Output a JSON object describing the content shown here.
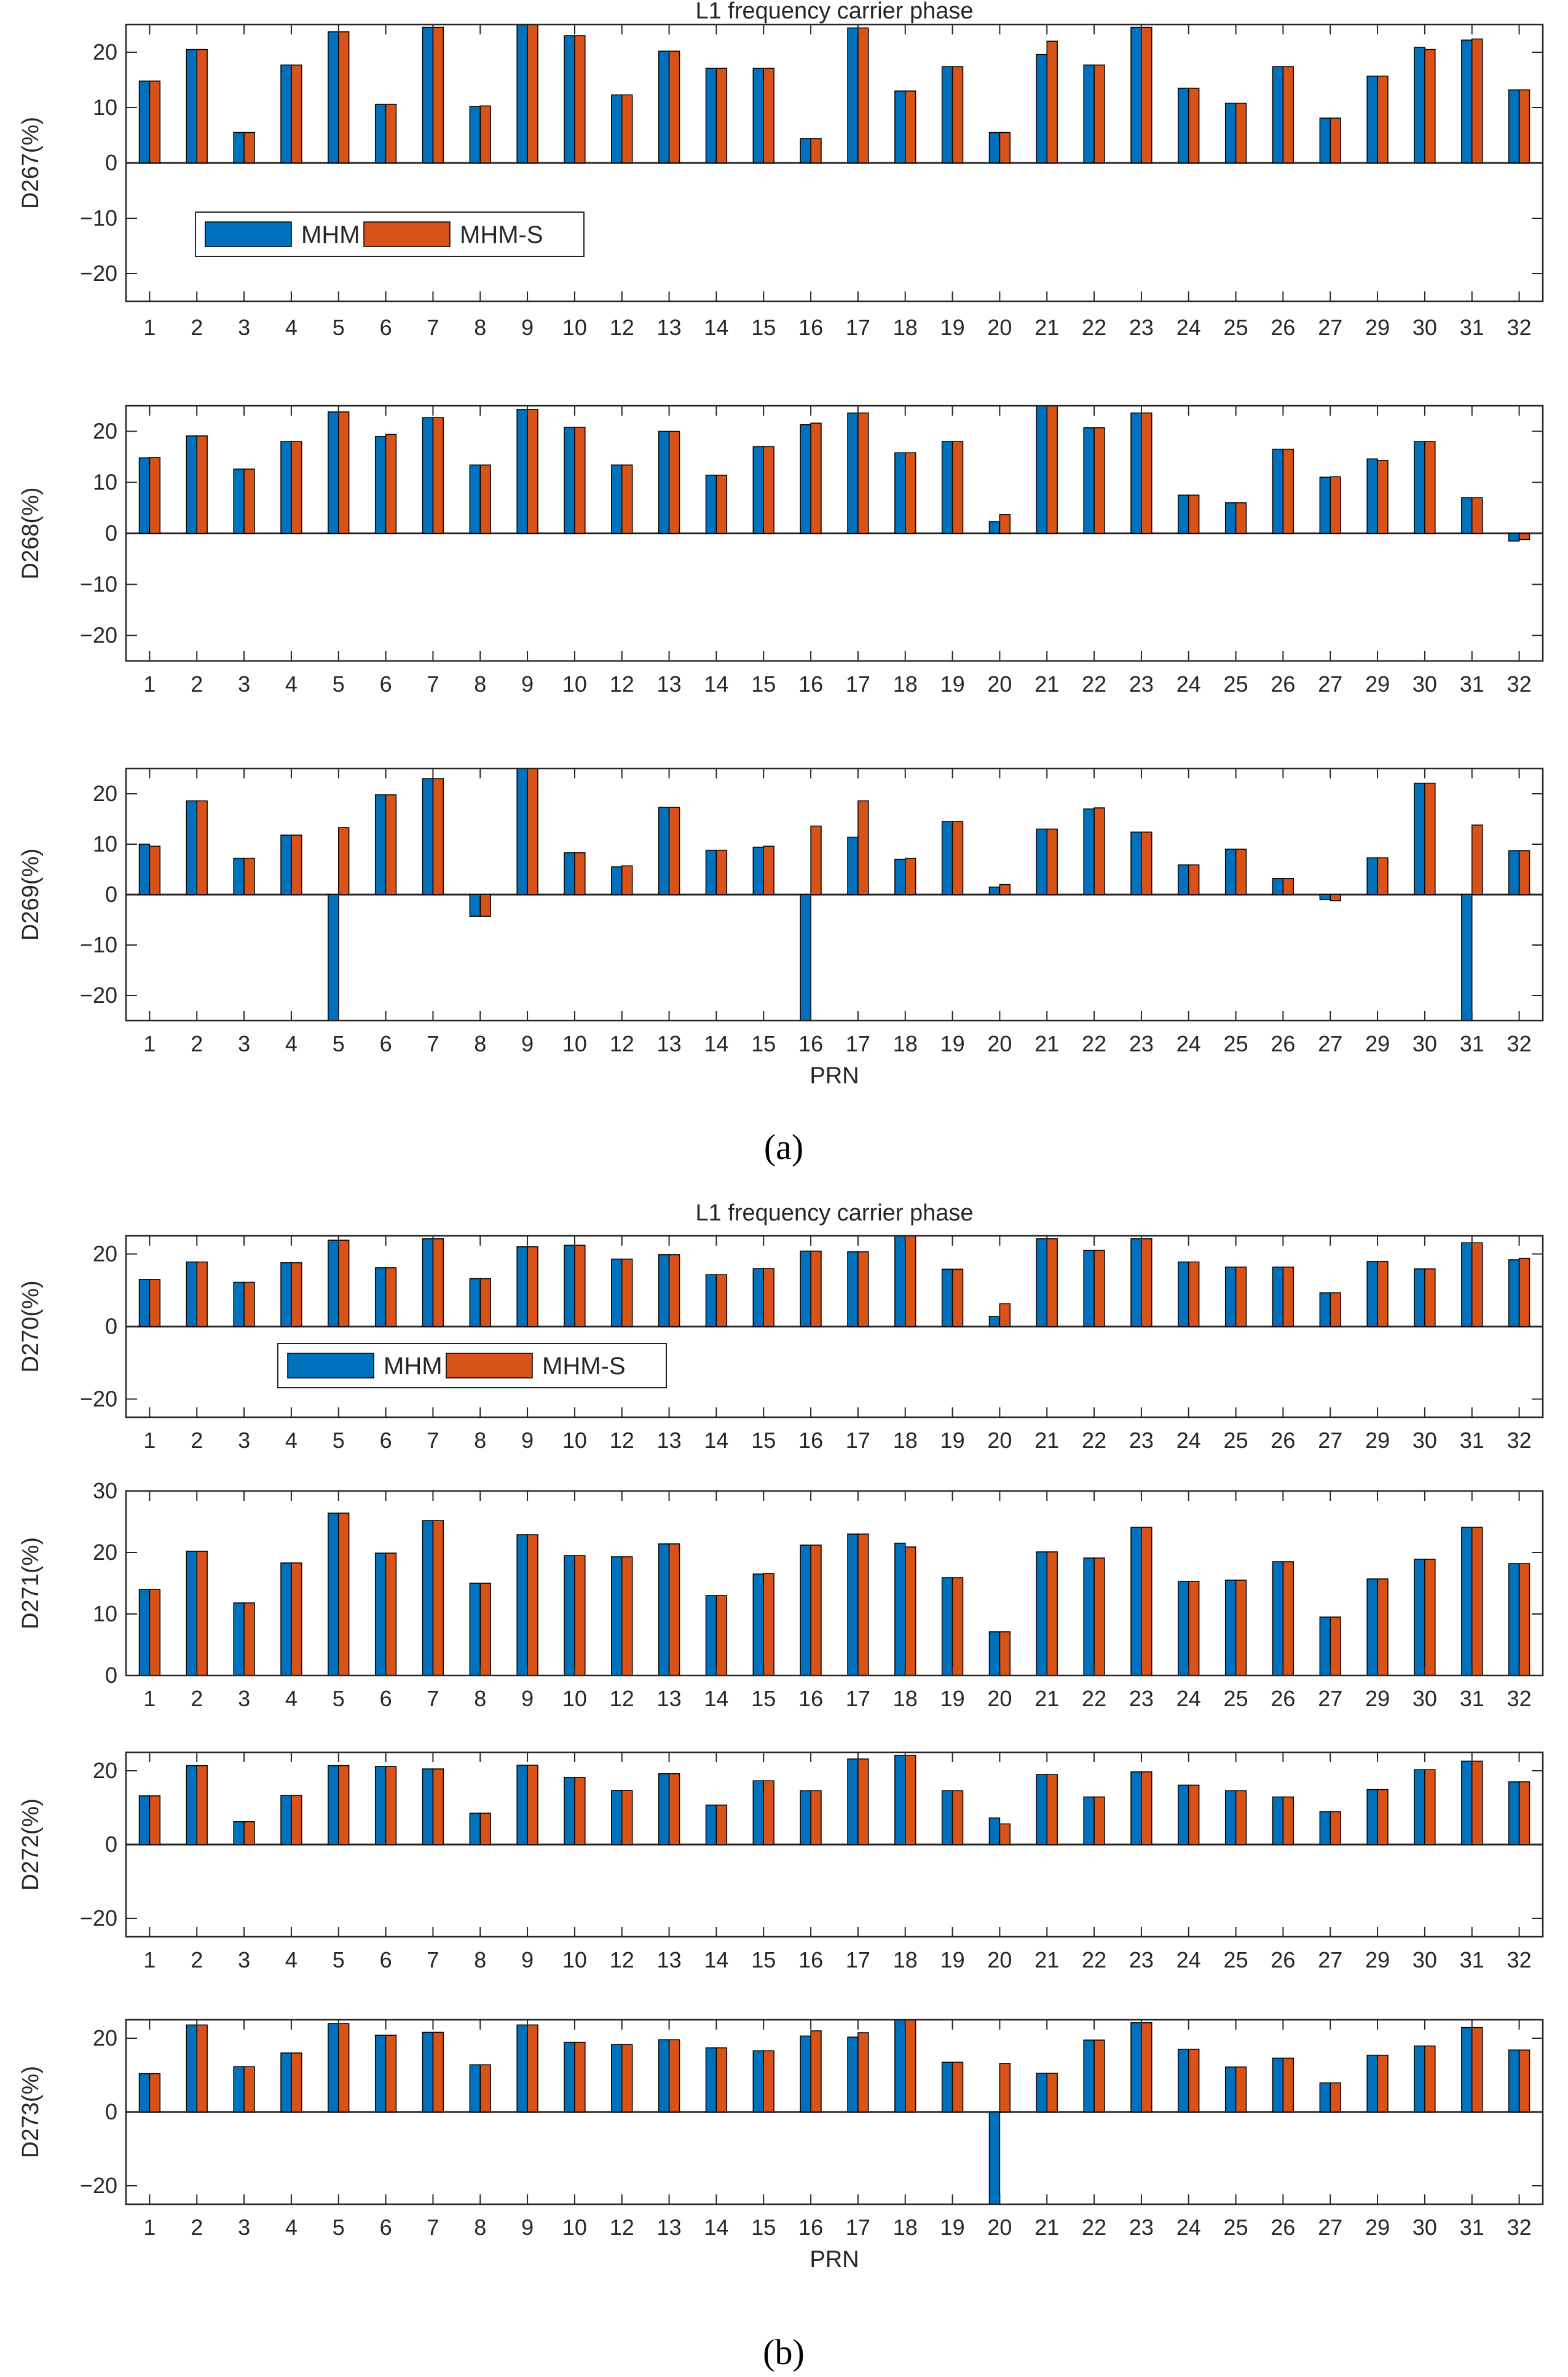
{
  "figure": {
    "panel_a_label": "(a)",
    "panel_b_label": "(b)",
    "colors": {
      "MHM": "#0072BD",
      "MHM-S": "#D95319",
      "axis": "#262626",
      "bar_edge": "#000000"
    }
  },
  "chart_data": [
    {
      "type": "bar",
      "group": "a",
      "title": "L1 frequency carrier phase",
      "ylabel": "D267(%)",
      "xlabel": "",
      "ylim": [
        -25,
        25
      ],
      "yticks": [
        -20,
        -10,
        0,
        10,
        20
      ],
      "legend": {
        "entries": [
          "MHM",
          "MHM-S"
        ],
        "placement": "lower-left"
      },
      "categories": [
        "1",
        "2",
        "3",
        "4",
        "5",
        "6",
        "7",
        "8",
        "9",
        "10",
        "12",
        "13",
        "14",
        "15",
        "16",
        "17",
        "18",
        "19",
        "20",
        "21",
        "22",
        "23",
        "24",
        "25",
        "26",
        "27",
        "29",
        "30",
        "31",
        "32"
      ],
      "series": [
        {
          "name": "MHM",
          "values": [
            14.8,
            20.5,
            5.5,
            17.7,
            23.7,
            10.6,
            24.5,
            10.2,
            25.0,
            23.0,
            12.3,
            20.2,
            17.1,
            17.1,
            4.4,
            24.4,
            13.0,
            17.4,
            5.5,
            19.6,
            17.7,
            24.5,
            13.5,
            10.8,
            17.4,
            8.1,
            15.7,
            20.9,
            22.2,
            13.2
          ]
        },
        {
          "name": "MHM-S",
          "values": [
            14.8,
            20.5,
            5.5,
            17.7,
            23.7,
            10.6,
            24.5,
            10.3,
            25.0,
            23.0,
            12.3,
            20.2,
            17.1,
            17.1,
            4.4,
            24.4,
            13.0,
            17.4,
            5.5,
            22.0,
            17.7,
            24.5,
            13.5,
            10.8,
            17.4,
            8.1,
            15.7,
            20.5,
            22.4,
            13.2
          ]
        }
      ]
    },
    {
      "type": "bar",
      "group": "a",
      "ylabel": "D268(%)",
      "xlabel": "",
      "ylim": [
        -25,
        25
      ],
      "yticks": [
        -20,
        -10,
        0,
        10,
        20
      ],
      "categories": [
        "1",
        "2",
        "3",
        "4",
        "5",
        "6",
        "7",
        "8",
        "9",
        "10",
        "12",
        "13",
        "14",
        "15",
        "16",
        "17",
        "18",
        "19",
        "20",
        "21",
        "22",
        "23",
        "24",
        "25",
        "26",
        "27",
        "29",
        "30",
        "31",
        "32"
      ],
      "series": [
        {
          "name": "MHM",
          "values": [
            14.8,
            19.1,
            12.6,
            18.0,
            23.8,
            19.0,
            22.7,
            13.4,
            24.3,
            20.8,
            13.4,
            20.0,
            11.4,
            17.0,
            21.3,
            23.6,
            15.8,
            18.0,
            2.3,
            25.0,
            20.7,
            23.6,
            7.5,
            6.0,
            16.5,
            11.0,
            14.6,
            18.0,
            7.0,
            -1.5
          ]
        },
        {
          "name": "MHM-S",
          "values": [
            14.9,
            19.1,
            12.6,
            18.0,
            23.8,
            19.4,
            22.7,
            13.4,
            24.3,
            20.8,
            13.4,
            20.0,
            11.4,
            17.0,
            21.6,
            23.6,
            15.8,
            18.0,
            3.7,
            25.0,
            20.7,
            23.6,
            7.5,
            6.0,
            16.5,
            11.1,
            14.3,
            18.0,
            7.0,
            -1.2
          ]
        }
      ]
    },
    {
      "type": "bar",
      "group": "a",
      "ylabel": "D269(%)",
      "xlabel": "PRN",
      "ylim": [
        -25,
        25
      ],
      "yticks": [
        -20,
        -10,
        0,
        10,
        20
      ],
      "categories": [
        "1",
        "2",
        "3",
        "4",
        "5",
        "6",
        "7",
        "8",
        "9",
        "10",
        "12",
        "13",
        "14",
        "15",
        "16",
        "17",
        "18",
        "19",
        "20",
        "21",
        "22",
        "23",
        "24",
        "25",
        "26",
        "27",
        "29",
        "30",
        "31",
        "32"
      ],
      "series": [
        {
          "name": "MHM",
          "values": [
            10.0,
            18.6,
            7.2,
            11.8,
            -25,
            19.8,
            23.0,
            -4.3,
            25.0,
            8.3,
            5.5,
            17.3,
            8.8,
            9.4,
            -25,
            11.4,
            7.0,
            14.5,
            1.5,
            13.0,
            17.0,
            12.4,
            5.9,
            9.0,
            3.2,
            -1.0,
            7.3,
            22.1,
            -25,
            8.7
          ]
        },
        {
          "name": "MHM-S",
          "values": [
            9.6,
            18.6,
            7.2,
            11.8,
            13.3,
            19.8,
            23.0,
            -4.3,
            25.0,
            8.3,
            5.7,
            17.3,
            8.8,
            9.6,
            13.6,
            18.6,
            7.2,
            14.5,
            2.0,
            13.0,
            17.2,
            12.4,
            5.9,
            9.0,
            3.2,
            -1.2,
            7.3,
            22.1,
            13.8,
            8.7
          ]
        }
      ]
    },
    {
      "type": "bar",
      "group": "b",
      "title": "L1 frequency carrier phase",
      "ylabel": "D270(%)",
      "xlabel": "",
      "ylim": [
        -25,
        25
      ],
      "yticks": [
        -20,
        0,
        20
      ],
      "legend": {
        "entries": [
          "MHM",
          "MHM-S"
        ],
        "placement": "lower-left"
      },
      "categories": [
        "1",
        "2",
        "3",
        "4",
        "5",
        "6",
        "7",
        "8",
        "9",
        "10",
        "12",
        "13",
        "14",
        "15",
        "16",
        "17",
        "18",
        "19",
        "20",
        "21",
        "22",
        "23",
        "24",
        "25",
        "26",
        "27",
        "29",
        "30",
        "31",
        "32"
      ],
      "series": [
        {
          "name": "MHM",
          "values": [
            13.0,
            17.8,
            12.2,
            17.6,
            23.8,
            16.2,
            24.2,
            13.2,
            22.0,
            22.4,
            18.6,
            19.8,
            14.3,
            16.0,
            20.8,
            20.6,
            25.0,
            15.8,
            2.8,
            24.2,
            21.0,
            24.2,
            17.8,
            16.4,
            16.4,
            9.3,
            17.9,
            15.9,
            23.1,
            18.4
          ]
        },
        {
          "name": "MHM-S",
          "values": [
            13.0,
            17.8,
            12.2,
            17.6,
            23.8,
            16.2,
            24.2,
            13.2,
            22.0,
            22.4,
            18.6,
            19.8,
            14.3,
            16.0,
            20.8,
            20.6,
            25.0,
            15.8,
            6.3,
            24.2,
            21.0,
            24.2,
            17.8,
            16.4,
            16.4,
            9.3,
            17.9,
            15.9,
            23.1,
            18.8
          ]
        }
      ]
    },
    {
      "type": "bar",
      "group": "b",
      "ylabel": "D271(%)",
      "xlabel": "",
      "ylim": [
        0,
        30
      ],
      "yticks": [
        0,
        10,
        20,
        30
      ],
      "categories": [
        "1",
        "2",
        "3",
        "4",
        "5",
        "6",
        "7",
        "8",
        "9",
        "10",
        "12",
        "13",
        "14",
        "15",
        "16",
        "17",
        "18",
        "19",
        "20",
        "21",
        "22",
        "23",
        "24",
        "25",
        "26",
        "27",
        "29",
        "30",
        "31",
        "32"
      ],
      "series": [
        {
          "name": "MHM",
          "values": [
            14.0,
            20.2,
            11.8,
            18.3,
            26.4,
            19.9,
            25.2,
            15.0,
            22.9,
            19.5,
            19.3,
            21.4,
            13.0,
            16.5,
            21.2,
            23.0,
            21.5,
            15.9,
            7.1,
            20.1,
            19.1,
            24.1,
            15.3,
            15.5,
            18.5,
            9.5,
            15.7,
            18.9,
            24.1,
            18.2
          ]
        },
        {
          "name": "MHM-S",
          "values": [
            14.0,
            20.2,
            11.8,
            18.3,
            26.4,
            19.9,
            25.2,
            15.0,
            22.9,
            19.5,
            19.3,
            21.4,
            13.0,
            16.6,
            21.2,
            23.0,
            20.9,
            15.9,
            7.1,
            20.1,
            19.1,
            24.1,
            15.3,
            15.5,
            18.5,
            9.5,
            15.7,
            18.9,
            24.1,
            18.2
          ]
        }
      ]
    },
    {
      "type": "bar",
      "group": "b",
      "ylabel": "D272(%)",
      "xlabel": "",
      "ylim": [
        -25,
        25
      ],
      "yticks": [
        -20,
        0,
        20
      ],
      "categories": [
        "1",
        "2",
        "3",
        "4",
        "5",
        "6",
        "7",
        "8",
        "9",
        "10",
        "12",
        "13",
        "14",
        "15",
        "16",
        "17",
        "18",
        "19",
        "20",
        "21",
        "22",
        "23",
        "24",
        "25",
        "26",
        "27",
        "29",
        "30",
        "31",
        "32"
      ],
      "series": [
        {
          "name": "MHM",
          "values": [
            13.2,
            21.4,
            6.2,
            13.3,
            21.4,
            21.2,
            20.5,
            8.5,
            21.5,
            18.2,
            14.7,
            19.2,
            10.7,
            17.3,
            14.6,
            23.2,
            24.2,
            14.6,
            7.2,
            19.0,
            12.9,
            19.7,
            16.1,
            14.6,
            12.9,
            8.9,
            14.9,
            20.3,
            22.6,
            17.0
          ]
        },
        {
          "name": "MHM-S",
          "values": [
            13.2,
            21.4,
            6.2,
            13.3,
            21.4,
            21.2,
            20.5,
            8.5,
            21.5,
            18.2,
            14.7,
            19.2,
            10.7,
            17.3,
            14.6,
            23.2,
            24.2,
            14.6,
            5.6,
            19.0,
            12.9,
            19.7,
            16.1,
            14.6,
            12.9,
            8.9,
            14.9,
            20.3,
            22.6,
            17.0
          ]
        }
      ]
    },
    {
      "type": "bar",
      "group": "b",
      "ylabel": "D273(%)",
      "xlabel": "PRN",
      "ylim": [
        -25,
        25
      ],
      "yticks": [
        -20,
        0,
        20
      ],
      "categories": [
        "1",
        "2",
        "3",
        "4",
        "5",
        "6",
        "7",
        "8",
        "9",
        "10",
        "12",
        "13",
        "14",
        "15",
        "16",
        "17",
        "18",
        "19",
        "20",
        "21",
        "22",
        "23",
        "24",
        "25",
        "26",
        "27",
        "29",
        "30",
        "31",
        "32"
      ],
      "series": [
        {
          "name": "MHM",
          "values": [
            10.4,
            23.6,
            12.3,
            16.0,
            24.0,
            20.8,
            21.6,
            12.8,
            23.6,
            18.9,
            18.3,
            19.6,
            17.4,
            16.6,
            20.6,
            20.3,
            25.0,
            13.5,
            -25,
            10.5,
            19.5,
            24.2,
            17.0,
            12.2,
            14.6,
            7.9,
            15.4,
            17.9,
            22.9,
            16.8
          ]
        },
        {
          "name": "MHM-S",
          "values": [
            10.4,
            23.6,
            12.3,
            16.0,
            24.0,
            20.8,
            21.6,
            12.8,
            23.6,
            18.9,
            18.3,
            19.6,
            17.4,
            16.6,
            22.0,
            21.5,
            25.0,
            13.5,
            13.2,
            10.5,
            19.5,
            24.2,
            17.0,
            12.2,
            14.6,
            7.9,
            15.4,
            17.9,
            22.9,
            16.8
          ]
        }
      ]
    }
  ]
}
